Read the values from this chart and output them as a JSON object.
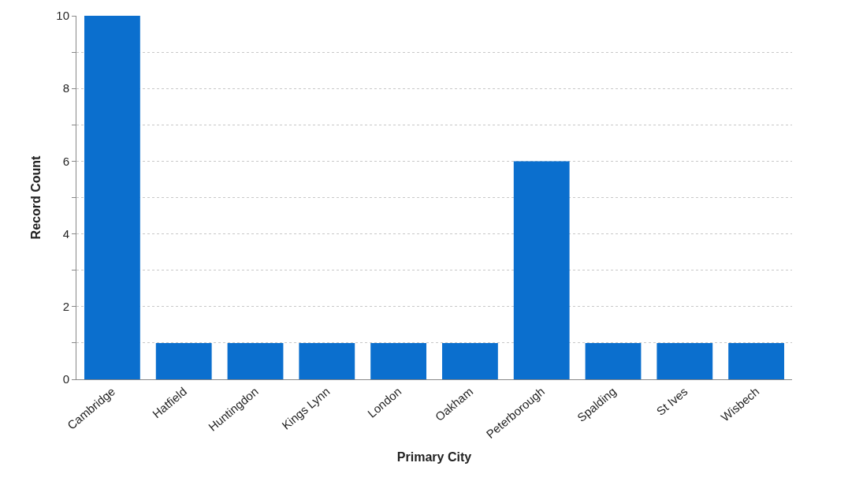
{
  "chart_data": {
    "type": "bar",
    "xlabel": "Primary City",
    "ylabel": "Record Count",
    "categories": [
      "Cambridge",
      "Hatfield",
      "Huntingdon",
      "Kings Lynn",
      "London",
      "Oakham",
      "Peterborough",
      "Spalding",
      "St Ives",
      "Wisbech"
    ],
    "values": [
      10,
      1,
      1,
      1,
      1,
      1,
      6,
      1,
      1,
      1
    ],
    "color": "#0b6fce",
    "ylim": [
      0,
      10
    ],
    "yticks": [
      0,
      {
        "value": 1,
        "label": null
      },
      2,
      {
        "value": 3,
        "label": null
      },
      4,
      {
        "value": 5,
        "label": null
      },
      6,
      {
        "value": 7,
        "label": null
      },
      8,
      {
        "value": 9,
        "label": null
      },
      10
    ],
    "grid": "y"
  }
}
